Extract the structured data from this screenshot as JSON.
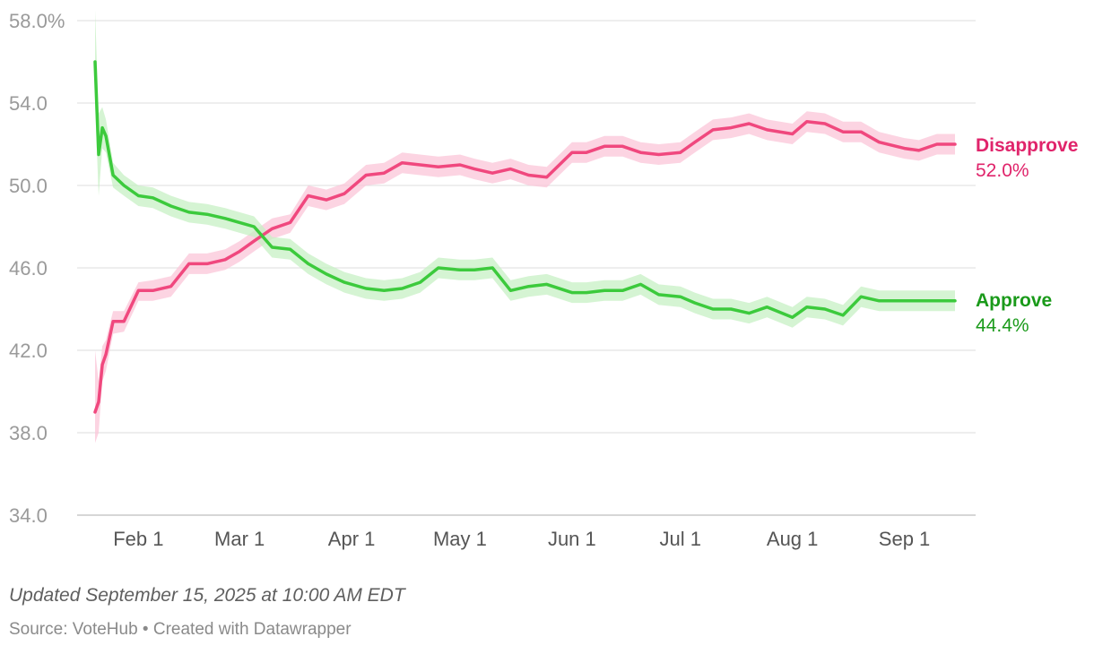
{
  "chart_data": {
    "type": "line",
    "x": [
      "2025-01-20",
      "2025-01-21",
      "2025-01-22",
      "2025-01-23",
      "2025-01-25",
      "2025-01-28",
      "2025-02-01",
      "2025-02-05",
      "2025-02-10",
      "2025-02-15",
      "2025-02-20",
      "2025-02-25",
      "2025-03-01",
      "2025-03-05",
      "2025-03-10",
      "2025-03-15",
      "2025-03-20",
      "2025-03-25",
      "2025-03-30",
      "2025-04-05",
      "2025-04-10",
      "2025-04-15",
      "2025-04-20",
      "2025-04-25",
      "2025-05-01",
      "2025-05-05",
      "2025-05-10",
      "2025-05-15",
      "2025-05-20",
      "2025-05-25",
      "2025-06-01",
      "2025-06-05",
      "2025-06-10",
      "2025-06-15",
      "2025-06-20",
      "2025-06-25",
      "2025-07-01",
      "2025-07-05",
      "2025-07-10",
      "2025-07-15",
      "2025-07-20",
      "2025-07-25",
      "2025-08-01",
      "2025-08-05",
      "2025-08-10",
      "2025-08-15",
      "2025-08-20",
      "2025-08-25",
      "2025-09-01",
      "2025-09-05",
      "2025-09-10",
      "2025-09-15"
    ],
    "series": [
      {
        "name": "Disapprove",
        "color": "#f0487e",
        "values": [
          39.0,
          39.5,
          41.3,
          41.8,
          43.4,
          43.4,
          44.9,
          44.9,
          45.1,
          46.2,
          46.2,
          46.4,
          46.8,
          47.3,
          47.9,
          48.2,
          49.5,
          49.3,
          49.6,
          50.5,
          50.6,
          51.1,
          51.0,
          50.9,
          51.0,
          50.8,
          50.6,
          50.8,
          50.5,
          50.4,
          51.6,
          51.6,
          51.9,
          51.9,
          51.6,
          51.5,
          51.6,
          52.1,
          52.7,
          52.8,
          53.0,
          52.7,
          52.5,
          53.1,
          53.0,
          52.6,
          52.6,
          52.1,
          51.8,
          51.7,
          52.0,
          52.0
        ],
        "band_lower": [
          37.5,
          38.0,
          40.5,
          41.0,
          42.8,
          42.9,
          44.4,
          44.4,
          44.6,
          45.7,
          45.7,
          45.9,
          46.3,
          46.8,
          47.4,
          47.7,
          49.0,
          48.8,
          49.1,
          50.0,
          50.1,
          50.6,
          50.5,
          50.4,
          50.5,
          50.3,
          50.1,
          50.3,
          50.0,
          49.9,
          51.1,
          51.1,
          51.4,
          51.4,
          51.1,
          51.0,
          51.1,
          51.6,
          52.2,
          52.3,
          52.5,
          52.2,
          52.0,
          52.6,
          52.5,
          52.1,
          52.1,
          51.6,
          51.3,
          51.2,
          51.5,
          51.5
        ],
        "band_upper": [
          42.0,
          40.5,
          42.2,
          42.5,
          43.9,
          43.9,
          45.3,
          45.4,
          45.6,
          46.7,
          46.7,
          46.9,
          47.3,
          47.8,
          48.4,
          48.6,
          50.0,
          49.8,
          50.1,
          51.0,
          51.1,
          51.6,
          51.5,
          51.4,
          51.5,
          51.3,
          51.1,
          51.3,
          51.0,
          50.9,
          52.1,
          52.1,
          52.4,
          52.4,
          52.1,
          52.0,
          52.1,
          52.6,
          53.2,
          53.3,
          53.5,
          53.2,
          53.0,
          53.6,
          53.5,
          53.1,
          53.1,
          52.6,
          52.3,
          52.2,
          52.5,
          52.5
        ]
      },
      {
        "name": "Approve",
        "color": "#3cca3c",
        "values": [
          56.0,
          51.5,
          52.8,
          52.4,
          50.5,
          50.0,
          49.5,
          49.4,
          49.0,
          48.7,
          48.6,
          48.4,
          48.2,
          48.0,
          47.0,
          46.9,
          46.2,
          45.7,
          45.3,
          45.0,
          44.9,
          45.0,
          45.3,
          46.0,
          45.9,
          45.9,
          46.0,
          44.9,
          45.1,
          45.2,
          44.8,
          44.8,
          44.9,
          44.9,
          45.2,
          44.7,
          44.6,
          44.3,
          44.0,
          44.0,
          43.8,
          44.1,
          43.6,
          44.1,
          44.0,
          43.7,
          44.6,
          44.4,
          44.4,
          44.4,
          44.4,
          44.4
        ],
        "band_lower": [
          54.0,
          49.5,
          51.8,
          51.6,
          49.9,
          49.5,
          49.0,
          48.9,
          48.5,
          48.2,
          48.1,
          47.9,
          47.7,
          47.5,
          46.5,
          46.4,
          45.7,
          45.2,
          44.8,
          44.5,
          44.4,
          44.5,
          44.8,
          45.5,
          45.4,
          45.4,
          45.5,
          44.4,
          44.6,
          44.7,
          44.3,
          44.3,
          44.4,
          44.4,
          44.7,
          44.2,
          44.1,
          43.8,
          43.5,
          43.5,
          43.3,
          43.6,
          43.1,
          43.6,
          43.5,
          43.2,
          44.1,
          43.9,
          43.9,
          43.9,
          43.9,
          43.9
        ],
        "band_upper": [
          58.5,
          53.5,
          53.8,
          53.2,
          51.1,
          50.5,
          50.0,
          49.9,
          49.5,
          49.2,
          49.1,
          48.9,
          48.7,
          48.5,
          47.5,
          47.4,
          46.7,
          46.2,
          45.8,
          45.5,
          45.4,
          45.5,
          45.8,
          46.5,
          46.4,
          46.4,
          46.5,
          45.4,
          45.6,
          45.7,
          45.3,
          45.3,
          45.4,
          45.4,
          45.7,
          45.2,
          45.1,
          44.8,
          44.5,
          44.5,
          44.3,
          44.6,
          44.1,
          44.6,
          44.5,
          44.2,
          45.1,
          44.9,
          44.9,
          44.9,
          44.9,
          44.9
        ]
      }
    ],
    "x_range": [
      "2025-01-20",
      "2025-09-16"
    ],
    "ylim": [
      34.0,
      58.0
    ],
    "yticks": [
      {
        "value": 58.0,
        "label": "58.0%"
      },
      {
        "value": 54.0,
        "label": "54.0"
      },
      {
        "value": 50.0,
        "label": "50.0"
      },
      {
        "value": 46.0,
        "label": "46.0"
      },
      {
        "value": 42.0,
        "label": "42.0"
      },
      {
        "value": 38.0,
        "label": "38.0"
      },
      {
        "value": 34.0,
        "label": "34.0"
      }
    ],
    "xticks": [
      {
        "date": "2025-02-01",
        "label": "Feb 1"
      },
      {
        "date": "2025-03-01",
        "label": "Mar 1"
      },
      {
        "date": "2025-04-01",
        "label": "Apr 1"
      },
      {
        "date": "2025-05-01",
        "label": "May 1"
      },
      {
        "date": "2025-06-01",
        "label": "Jun 1"
      },
      {
        "date": "2025-07-01",
        "label": "Jul 1"
      },
      {
        "date": "2025-08-01",
        "label": "Aug 1"
      },
      {
        "date": "2025-09-01",
        "label": "Sep 1"
      }
    ],
    "grid": true,
    "end_labels": [
      {
        "name": "Disapprove",
        "value_label": "52.0%",
        "color": "#e0246b"
      },
      {
        "name": "Approve",
        "value_label": "44.4%",
        "color": "#1a9a1a"
      }
    ]
  },
  "footer": {
    "updated": "Updated September 15, 2025 at 10:00 AM EDT",
    "source": "Source: VoteHub • Created with Datawrapper"
  }
}
